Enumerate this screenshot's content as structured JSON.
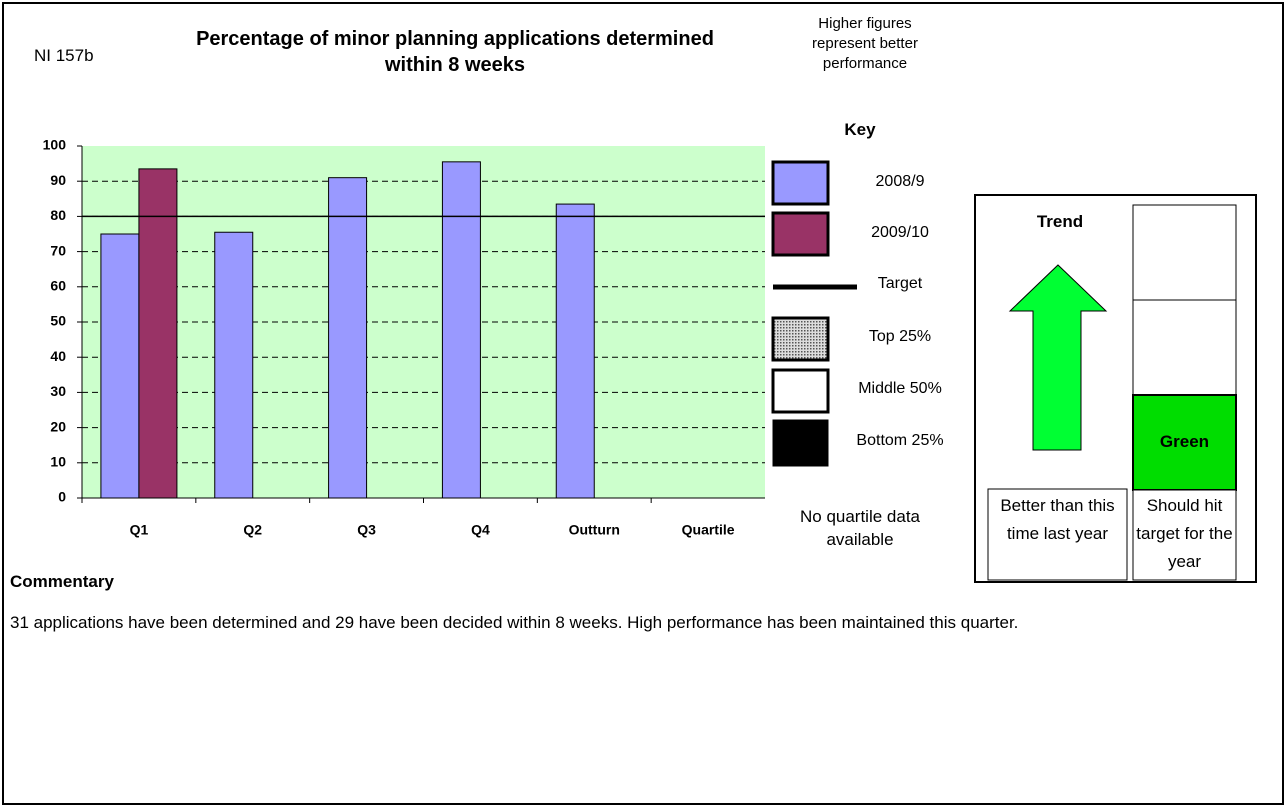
{
  "indicator": "NI 157b",
  "note": "Higher figures represent better performance",
  "chart_data": {
    "type": "bar",
    "title": "Percentage of minor planning applications determined within 8 weeks",
    "categories": [
      "Q1",
      "Q2",
      "Q3",
      "Q4",
      "Outturn",
      "Quartile"
    ],
    "series": [
      {
        "name": "2008/9",
        "color": "#9999ff",
        "values": [
          75,
          75.5,
          91,
          95.5,
          83.5,
          null
        ]
      },
      {
        "name": "2009/10",
        "color": "#993366",
        "values": [
          93.5,
          null,
          null,
          null,
          null,
          null
        ]
      }
    ],
    "target": {
      "name": "Target",
      "value": 80,
      "color": "#000000"
    },
    "ylim": [
      0,
      100
    ],
    "yticks": [
      0,
      10,
      20,
      30,
      40,
      50,
      60,
      70,
      80,
      90,
      100
    ],
    "grid": true,
    "plot_background": "#ccffcc"
  },
  "key": {
    "title": "Key",
    "quartiles": [
      "Top 25%",
      "Middle 50%",
      "Bottom 25%"
    ],
    "no_data": "No quartile data available"
  },
  "trend": {
    "title": "Trend",
    "caption": "Better than this time last year"
  },
  "status": {
    "label": "Green",
    "caption": "Should hit target for the year"
  },
  "commentary": {
    "title": "Commentary",
    "text": "31 applications have been determined and 29 have been decided within 8 weeks. High performance has been maintained this quarter."
  }
}
